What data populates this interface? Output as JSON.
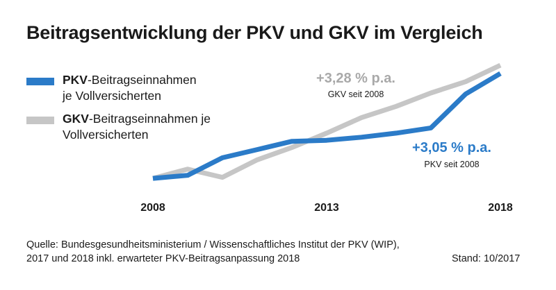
{
  "chart_data": {
    "type": "line",
    "title": "Beitragsentwicklung der PKV und GKV im Vergleich",
    "x_ticks": [
      "2008",
      "2013",
      "2018"
    ],
    "xlim": [
      2008,
      2018
    ],
    "ylim": [
      97,
      155
    ],
    "grid": false,
    "legend_position": "top-left",
    "series": [
      {
        "key": "pkv",
        "name_bold": "PKV",
        "name_rest_line1": "-Beitragseinnahmen",
        "name_line2": "je Vollversicherten",
        "color": "#2b7bc8",
        "annotation_rate": "+3,05 % p.a.",
        "annotation_note": "PKV seit 2008",
        "x": [
          2008,
          2009,
          2010,
          2011,
          2012,
          2013,
          2014,
          2015,
          2016,
          2017,
          2018
        ],
        "y": [
          100,
          101.5,
          110,
          114,
          118,
          118.5,
          120,
          122,
          124.5,
          141,
          151
        ]
      },
      {
        "key": "gkv",
        "name_bold": "GKV",
        "name_rest_line1": "-Beitragseinnahmen je",
        "name_line2": "Vollversicherten",
        "color": "#c6c6c6",
        "annotation_rate": "+3,28 % p.a.",
        "annotation_note": "GKV seit 2008",
        "x": [
          2008,
          2009,
          2010,
          2011,
          2012,
          2013,
          2014,
          2015,
          2016,
          2017,
          2018
        ],
        "y": [
          100,
          104.5,
          100.5,
          109,
          115,
          122,
          129.5,
          135,
          141.5,
          147,
          155
        ]
      }
    ]
  },
  "footer": {
    "source_line1": "Quelle: Bundesgesundheitsministerium / Wissenschaftliches Institut der PKV (WIP),",
    "source_line2": "2017 und 2018 inkl. erwarteter PKV-Beitragsanpassung 2018",
    "stand": "Stand: 10/2017"
  }
}
